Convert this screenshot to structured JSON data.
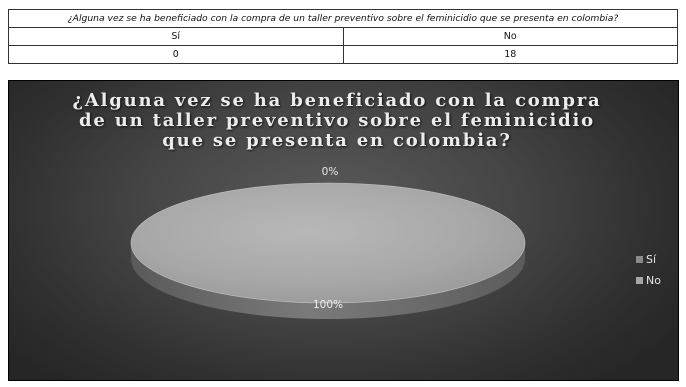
{
  "table": {
    "question": "¿Alguna vez se ha beneficiado con la compra de un taller preventivo sobre el feminicidio que se presenta en colombia?",
    "headers": [
      "Sí",
      "No"
    ],
    "values": [
      "0",
      "18"
    ]
  },
  "chart_data": {
    "type": "pie",
    "title": "¿Alguna vez se ha beneficiado con la compra de un taller preventivo sobre el feminicidio que se presenta en colombia?",
    "title_lines": [
      "¿Alguna vez se ha beneficiado con la compra",
      "de un taller preventivo sobre el feminicidio",
      "que se presenta en colombia?"
    ],
    "categories": [
      "Sí",
      "No"
    ],
    "values": [
      0,
      18
    ],
    "data_labels": [
      "0%",
      "100%"
    ],
    "legend_position": "right",
    "style": "3d",
    "colors": {
      "Sí": "#8a8a8a",
      "No": "#a6a6a6"
    },
    "background": "#3a3a3a"
  }
}
